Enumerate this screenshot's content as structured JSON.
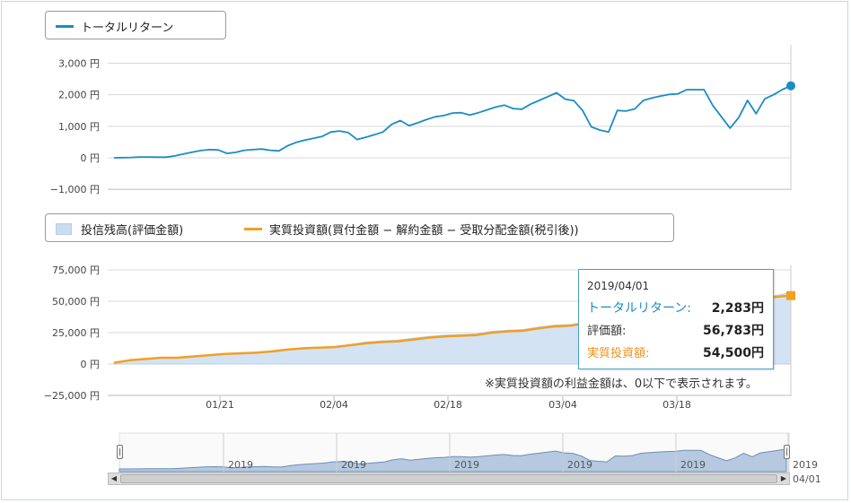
{
  "top_legend": {
    "series_label": "トータルリターン"
  },
  "bottom_legend": {
    "area_label": "投信残高(評価金額)",
    "line_label": "実質投資額(買付金額 − 解約金額 − 受取分配金額(税引後))"
  },
  "tooltip": {
    "date": "2019/04/01",
    "rows": [
      {
        "label": "トータルリターン:",
        "value": "2,283円"
      },
      {
        "label": "評価額:",
        "value": "56,783円"
      },
      {
        "label": "実質投資額:",
        "value": "54,500円"
      }
    ]
  },
  "note": "※実質投資額の利益金額は、0以下で表示されます。",
  "navigator": {
    "year_labels": [
      "2019",
      "2019",
      "2019",
      "2019",
      "2019",
      "2019"
    ],
    "date_labels": [
      "01/21",
      "02/04",
      "02/18",
      "03/04",
      "03/18",
      "04/01"
    ]
  },
  "colors": {
    "total_return": "#1a8dc3",
    "investment": "#f0a023",
    "valuation_fill": "#d3e3f4",
    "navigator_fill": "#b6c9e0"
  },
  "chart_data": [
    {
      "type": "line",
      "title": "",
      "ylabel": "",
      "yticks": [
        "3,000 円",
        "2,000 円",
        "1,000 円",
        "0 円",
        "−1,000 円"
      ],
      "ylim": [
        -1000,
        3000
      ],
      "grid": true,
      "legend_position": "top-left",
      "series": [
        {
          "name": "トータルリターン",
          "values": [
            0,
            5,
            10,
            25,
            25,
            20,
            20,
            60,
            120,
            180,
            230,
            260,
            250,
            140,
            170,
            240,
            260,
            280,
            240,
            220,
            380,
            490,
            560,
            620,
            680,
            820,
            850,
            800,
            580,
            650,
            730,
            820,
            1060,
            1180,
            1020,
            1110,
            1210,
            1300,
            1340,
            1420,
            1430,
            1360,
            1430,
            1520,
            1610,
            1670,
            1560,
            1540,
            1700,
            1820,
            1940,
            2060,
            1860,
            1810,
            1500,
            980,
            880,
            820,
            1500,
            1480,
            1550,
            1820,
            1900,
            1960,
            2010,
            2030,
            2160,
            2160,
            2160,
            1660,
            1300,
            940,
            1280,
            1820,
            1400,
            1870,
            2000,
            2160,
            2283
          ]
        }
      ]
    },
    {
      "type": "area",
      "title": "",
      "yticks": [
        "75,000 円",
        "50,000 円",
        "25,000 円",
        "0 円",
        "−25,000 円"
      ],
      "ylim": [
        -25000,
        75000
      ],
      "xticks": [
        "01/21",
        "02/04",
        "02/18",
        "03/04",
        "03/18"
      ],
      "grid": true,
      "legend_position": "top-left",
      "series": [
        {
          "name": "投信残高(評価金額)",
          "values": [
            1000,
            3000,
            4500,
            5000,
            5000,
            6000,
            7000,
            8000,
            9000,
            9500,
            10000,
            11500,
            13000,
            13500,
            14000,
            15500,
            17500,
            18500,
            19000,
            20500,
            22000,
            23000,
            23500,
            24000,
            26000,
            27000,
            27500,
            29500,
            31000,
            31500,
            33500,
            35500,
            36000,
            37500,
            38500,
            40000,
            42000,
            44000,
            46000,
            48000,
            50000,
            52000,
            54500,
            56783
          ]
        },
        {
          "name": "実質投資額(買付金額 − 解約金額 − 受取分配金額(税引後))",
          "values": [
            1000,
            3000,
            4000,
            5000,
            5000,
            6000,
            7000,
            8000,
            8500,
            9000,
            10000,
            11500,
            12500,
            13000,
            13500,
            15000,
            16500,
            17500,
            18000,
            19500,
            21000,
            22000,
            22500,
            23000,
            25000,
            26000,
            26500,
            28500,
            30000,
            30500,
            32500,
            34500,
            35000,
            36500,
            38000,
            39500,
            41500,
            43500,
            45500,
            47500,
            49500,
            51500,
            53500,
            54500
          ]
        }
      ]
    }
  ]
}
